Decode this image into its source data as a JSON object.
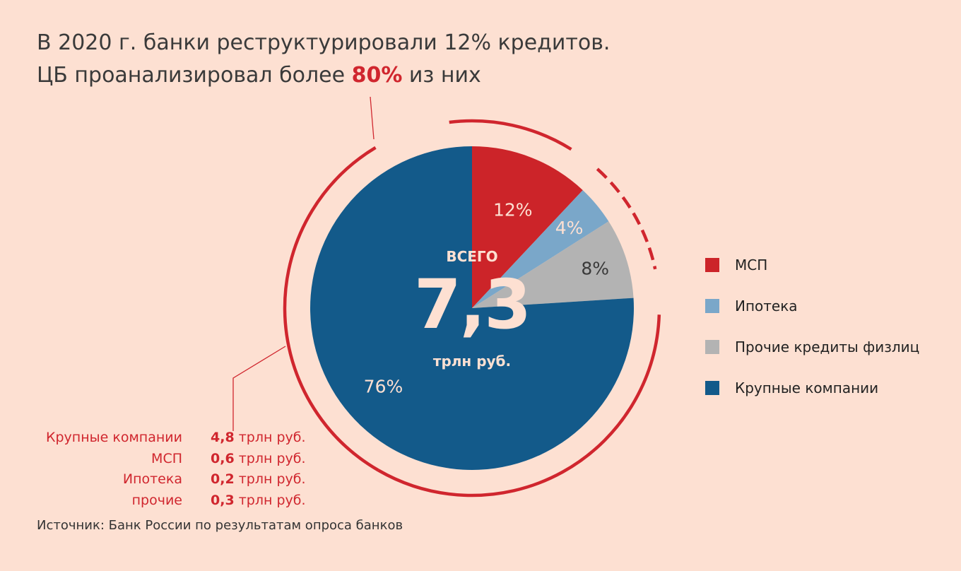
{
  "title_line1": "В 2020 г. банки реструктурировали 12% кредитов.",
  "title_line2_prefix": "ЦБ проанализировал более ",
  "title_line2_highlight": "80%",
  "title_line2_suffix": " из них",
  "colors": {
    "background": "#fde0d2",
    "accent_red": "#d0262e",
    "msp": "#cc2429",
    "mortgage": "#7aa7c9",
    "other_consumer": "#b3b3b3",
    "large_companies": "#135a8a"
  },
  "center": {
    "label": "ВСЕГО",
    "value": "7,3",
    "unit": "трлн руб."
  },
  "chart_data": {
    "type": "pie",
    "total": 7.3,
    "unit": "трлн руб.",
    "start_angle_deg": 0,
    "direction": "clockwise",
    "slices": [
      {
        "name": "МСП",
        "value": 12,
        "label": "12%",
        "color": "#cc2429",
        "label_color": "#fde0d2"
      },
      {
        "name": "Ипотека",
        "value": 4,
        "label": "4%",
        "color": "#7aa7c9",
        "label_color": "#fde0d2"
      },
      {
        "name": "Прочие кредиты физлиц",
        "value": 8,
        "label": "8%",
        "color": "#b3b3b3",
        "label_color": "#3a3a3a"
      },
      {
        "name": "Крупные компании",
        "value": 76,
        "label": "76%",
        "color": "#135a8a",
        "label_color": "#fde0d2"
      }
    ],
    "legend_position": "right"
  },
  "legend": [
    {
      "label": "МСП",
      "color": "#cc2429"
    },
    {
      "label": "Ипотека",
      "color": "#7aa7c9"
    },
    {
      "label": "Прочие кредиты физлиц",
      "color": "#b3b3b3"
    },
    {
      "label": "Крупные компании",
      "color": "#135a8a"
    }
  ],
  "breakdown": [
    {
      "label": "Крупные компании",
      "value": "4,8",
      "unit": "трлн руб."
    },
    {
      "label": "МСП",
      "value": "0,6",
      "unit": "трлн руб."
    },
    {
      "label": "Ипотека",
      "value": "0,2",
      "unit": "трлн руб."
    },
    {
      "label": "прочие",
      "value": "0,3",
      "unit": "трлн руб."
    }
  ],
  "source": "Источник: Банк России по результатам опроса банков"
}
